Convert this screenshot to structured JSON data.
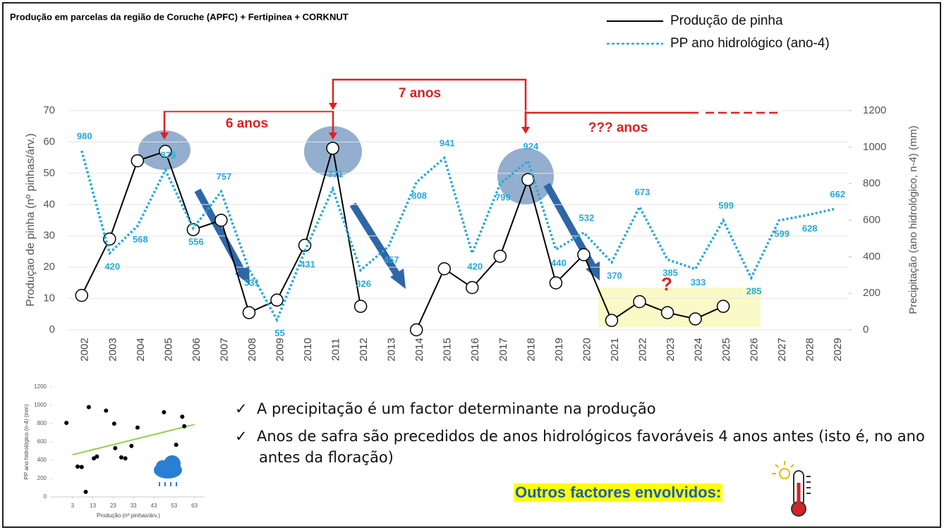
{
  "chart_data": [
    {
      "type": "line",
      "title": "Produção em parcelas da região de Coruche (APFC) + Fertipinea + CORKNUT",
      "ylabel": "Produçao de pinha (nº pinhas/árv.)",
      "y2label": "Precipitação (ano hidrológico, n-4) (mm)",
      "categories": [
        "2002",
        "2003",
        "2004",
        "2005",
        "2006",
        "2007",
        "2008",
        "2009",
        "2010",
        "2011",
        "2012",
        "2013",
        "2014",
        "2015",
        "2016",
        "2017",
        "2018",
        "2019",
        "2020",
        "2021",
        "2022",
        "2023",
        "2024",
        "2025",
        "2026",
        "2027",
        "2028",
        "2029"
      ],
      "series": [
        {
          "name": "Produção de pinha",
          "color": "#000000",
          "values": [
            11,
            29,
            54,
            57,
            32,
            35,
            5.5,
            9.5,
            27,
            58,
            7.5,
            null,
            0,
            19.5,
            13.5,
            23.5,
            48,
            15,
            24,
            3,
            9,
            5.5,
            3.5,
            7.5,
            null,
            null,
            null,
            null
          ]
        },
        {
          "name": "PP ano hidrológico (ano-4)",
          "color": "#29a9d6",
          "axis": "y2",
          "values": [
            980,
            420,
            568,
            875,
            556,
            757,
            331,
            55,
            431,
            771,
            326,
            457,
            808,
            941,
            420,
            799,
            924,
            440,
            532,
            370,
            673,
            385,
            333,
            599,
            285,
            599,
            628,
            662
          ]
        }
      ],
      "ylim": [
        0,
        70
      ],
      "yticks": [
        0,
        10,
        20,
        30,
        40,
        50,
        60,
        70
      ],
      "y2lim": [
        0,
        1200
      ],
      "y2ticks": [
        0,
        200,
        400,
        600,
        800,
        1000,
        1200
      ],
      "annotations": [
        "6 anos",
        "7 anos",
        "??? anos",
        "?"
      ]
    },
    {
      "type": "scatter",
      "xlabel": "Produção (nº pinhas/árv.)",
      "ylabel": "PP ano hidrológico (n-4) (mm)",
      "x": [
        11,
        29,
        54,
        57,
        32,
        35,
        5.5,
        9.5,
        27,
        58,
        7.5,
        0,
        19.5,
        13.5,
        23.5,
        48,
        15,
        24
      ],
      "values": [
        980,
        420,
        568,
        875,
        556,
        757,
        331,
        55,
        431,
        771,
        326,
        808,
        941,
        420,
        799,
        924,
        440,
        532
      ],
      "color": "#000000",
      "trendline": {
        "color": "#92d050",
        "x": [
          3,
          63
        ],
        "values": [
          460,
          790
        ]
      },
      "xlim": [
        -7,
        68
      ],
      "xticks": [
        3,
        13,
        23,
        33,
        43,
        53,
        63
      ],
      "ylim": [
        0,
        1200
      ],
      "yticks": [
        0,
        200,
        400,
        600,
        800,
        1000,
        1200
      ]
    }
  ],
  "bullets": [
    "A precipitação é um factor determinante na produção",
    "Anos de safra são precedidos de anos hidrológicos favoráveis 4 anos antes (isto é, no ano antes da floração)"
  ],
  "highlight": "Outros factores envolvidos:"
}
